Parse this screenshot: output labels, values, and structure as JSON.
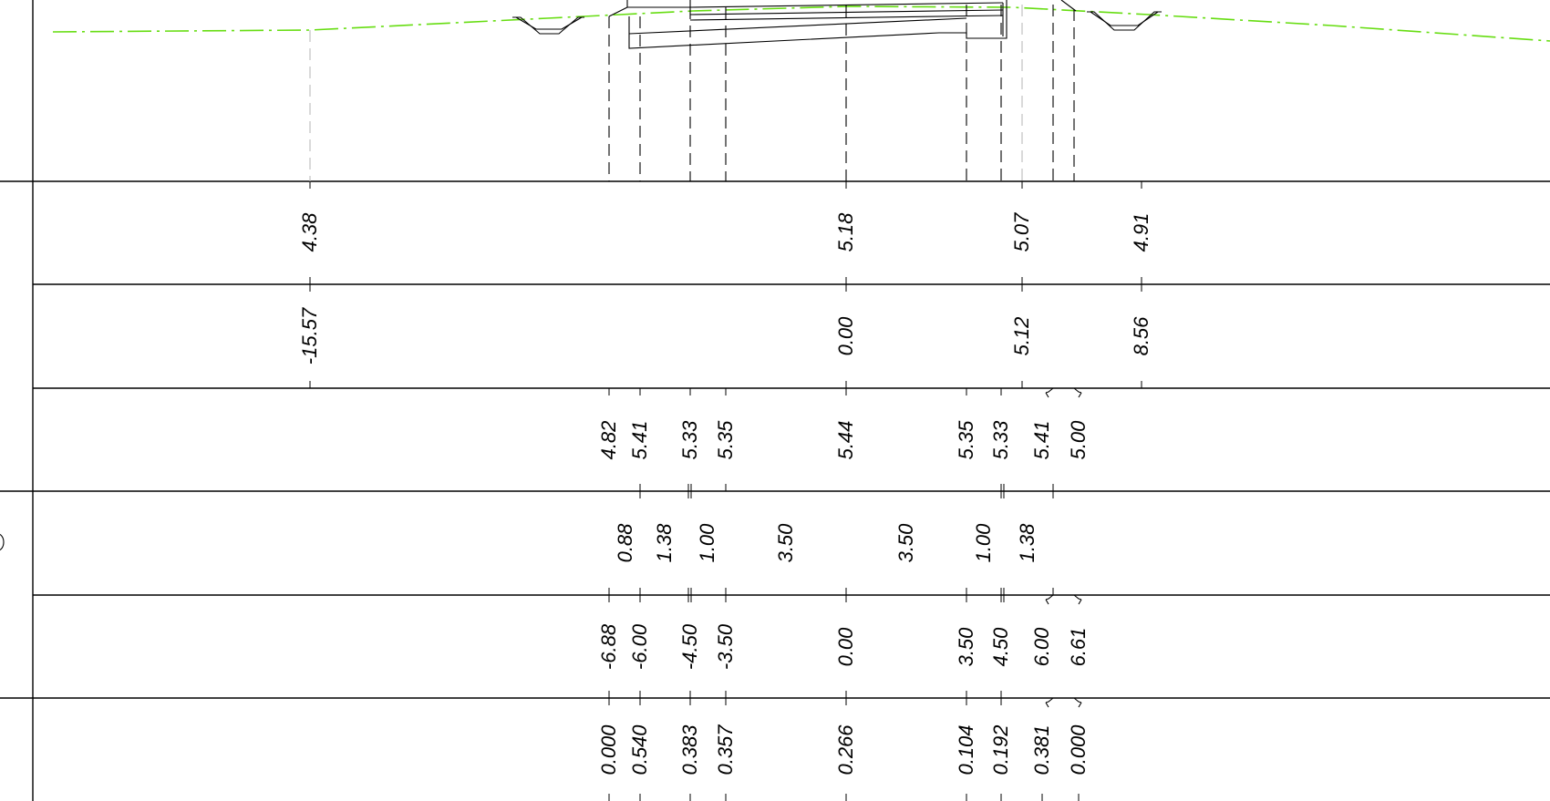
{
  "rows": [
    {
      "labels": [
        [
          "4.38",
          0
        ],
        [
          "5.18",
          1
        ],
        [
          "5.07",
          2
        ],
        [
          "4.91",
          3
        ]
      ]
    },
    {
      "labels": [
        [
          "-15.57",
          0
        ],
        [
          "0.00",
          1
        ],
        [
          "5.12",
          2
        ],
        [
          "8.56",
          3
        ]
      ]
    },
    {
      "labels": [
        [
          "4.82",
          4
        ],
        [
          "5.41",
          5
        ],
        [
          "5.33",
          6
        ],
        [
          "5.35",
          7
        ],
        [
          "5.44",
          1
        ],
        [
          "5.35",
          8
        ],
        [
          "5.33",
          9
        ],
        [
          "5.41",
          10
        ],
        [
          "5.00",
          11
        ]
      ]
    },
    {
      "labels": [
        [
          "0.88",
          12
        ],
        [
          "1.38",
          13
        ],
        [
          "1.00",
          14
        ],
        [
          "3.50",
          15
        ],
        [
          "3.50",
          16
        ],
        [
          "1.00",
          17
        ],
        [
          "1.38",
          18
        ]
      ]
    },
    {
      "labels": [
        [
          "-6.88",
          4
        ],
        [
          "-6.00",
          5
        ],
        [
          "-4.50",
          6
        ],
        [
          "-3.50",
          7
        ],
        [
          "0.00",
          1
        ],
        [
          "3.50",
          8
        ],
        [
          "4.50",
          9
        ],
        [
          "6.00",
          10
        ],
        [
          "6.61",
          11
        ]
      ]
    },
    {
      "labels": [
        [
          "0.000",
          4
        ],
        [
          "0.540",
          5
        ],
        [
          "0.383",
          6
        ],
        [
          "0.357",
          7
        ],
        [
          "0.266",
          1
        ],
        [
          "0.104",
          8
        ],
        [
          "0.192",
          9
        ],
        [
          "0.381",
          10
        ],
        [
          "0.000",
          11
        ]
      ]
    }
  ],
  "colors": {
    "ground_line": "#66dd11",
    "lines": "#000000",
    "guide_grey": "#bbbbbb"
  }
}
